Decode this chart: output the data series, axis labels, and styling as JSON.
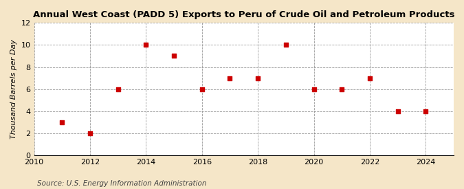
{
  "title": "Annual West Coast (PADD 5) Exports to Peru of Crude Oil and Petroleum Products",
  "ylabel": "Thousand Barrels per Day",
  "source": "Source: U.S. Energy Information Administration",
  "fig_background_color": "#f5e6c8",
  "plot_background_color": "#ffffff",
  "marker_color": "#cc0000",
  "x": [
    2011,
    2012,
    2013,
    2014,
    2015,
    2016,
    2017,
    2018,
    2019,
    2020,
    2021,
    2022,
    2023,
    2024
  ],
  "y": [
    3,
    2,
    6,
    10,
    9,
    6,
    7,
    7,
    10,
    6,
    6,
    7,
    4,
    4
  ],
  "xlim": [
    2010,
    2025
  ],
  "ylim": [
    0,
    12
  ],
  "yticks": [
    0,
    2,
    4,
    6,
    8,
    10,
    12
  ],
  "xticks": [
    2010,
    2012,
    2014,
    2016,
    2018,
    2020,
    2022,
    2024
  ],
  "title_fontsize": 9.5,
  "label_fontsize": 8,
  "tick_fontsize": 8,
  "source_fontsize": 7.5,
  "marker_size": 25
}
